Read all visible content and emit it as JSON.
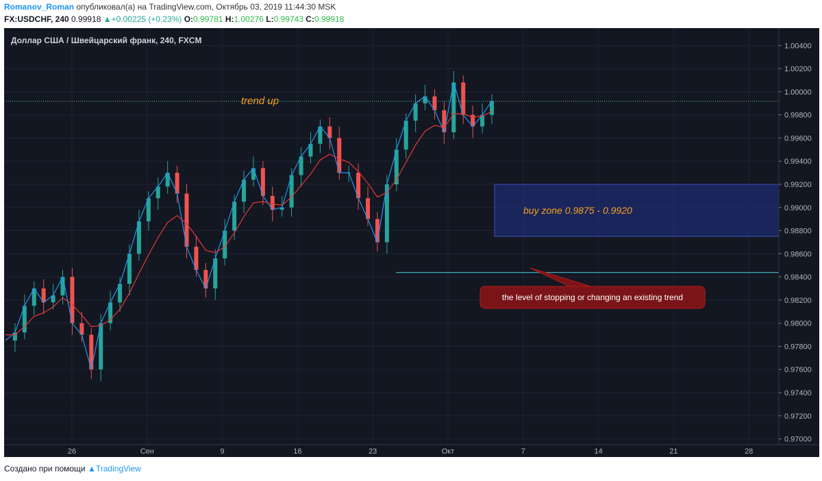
{
  "header": {
    "author": "Romanov_Roman",
    "published_text": "опубликовал(а) на TradingView.com, Октябрь 03, 2019 11:44:30 MSK"
  },
  "ohlc": {
    "symbol": "FX:USDCHF, 240",
    "last": "0.99918",
    "change": "+0.00225 (+0.23%)",
    "o_label": "O:",
    "o": "0.99781",
    "h_label": "H:",
    "h": "1.00276",
    "l_label": "L:",
    "l": "0.99743",
    "c_label": "C:",
    "c": "0.99918"
  },
  "chart_data": {
    "type": "line",
    "title": "Доллар США / Швейцарский франк, 240, FXCM",
    "y_ticks": [
      "1.00400",
      "1.00200",
      "1.00000",
      "0.99800",
      "0.99600",
      "0.99400",
      "0.99200",
      "0.99000",
      "0.98800",
      "0.98600",
      "0.98400",
      "0.98200",
      "0.98000",
      "0.97800",
      "0.97600",
      "0.97400",
      "0.97200",
      "0.97000"
    ],
    "ylim": [
      0.9695,
      1.0055
    ],
    "x_ticks": [
      "26",
      "Сен",
      "9",
      "16",
      "23",
      "Окт",
      "7",
      "14",
      "21",
      "28"
    ],
    "series": [
      {
        "values": [
          0.9785,
          0.9792,
          0.9815,
          0.983,
          0.9818,
          0.9824,
          0.984,
          0.98,
          0.979,
          0.976,
          0.98,
          0.9818,
          0.9834,
          0.986,
          0.9888,
          0.9908,
          0.9918,
          0.993,
          0.9912,
          0.9866,
          0.9846,
          0.983,
          0.9856,
          0.988,
          0.9905,
          0.9924,
          0.9934,
          0.991,
          0.9898,
          0.99,
          0.9928,
          0.9944,
          0.9955,
          0.997,
          0.996,
          0.993,
          0.993,
          0.9908,
          0.989,
          0.987,
          0.992,
          0.995,
          0.9975,
          0.999,
          0.9996,
          0.9984,
          0.9965,
          1.0008,
          0.998,
          0.997,
          0.998,
          0.9992
        ]
      },
      {
        "values": [
          0.979,
          0.979,
          0.9797,
          0.9806,
          0.9809,
          0.9814,
          0.9822,
          0.9816,
          0.9807,
          0.9797,
          0.9798,
          0.9803,
          0.9812,
          0.9826,
          0.9843,
          0.9859,
          0.9874,
          0.9887,
          0.9893,
          0.9886,
          0.9875,
          0.9863,
          0.9861,
          0.9866,
          0.9878,
          0.9892,
          0.9904,
          0.9905,
          0.9903,
          0.9902,
          0.9909,
          0.9919,
          0.9929,
          0.9941,
          0.9946,
          0.9942,
          0.9939,
          0.9931,
          0.9921,
          0.9909,
          0.9913,
          0.9924,
          0.9939,
          0.9954,
          0.9966,
          0.9971,
          0.9969,
          0.9981,
          0.9981,
          0.9978,
          0.9979,
          0.9983
        ]
      }
    ],
    "price_line": "0.99918",
    "level_line": "0.98438",
    "buy_zone": [
      0.9875,
      0.992
    ],
    "annotations": {
      "trend": "trend up",
      "buy_zone": "buy zone 0.9875 - 0.9920",
      "level": "the level of stopping or changing an existing trend"
    }
  },
  "footer": {
    "made_with": "Создано при помощи",
    "brand": "TradingView"
  },
  "colors": {
    "bg": "#131722",
    "up": "#26a69a",
    "down": "#ef5350",
    "ma_fast": "#2196f3",
    "ma_slow": "#e53935",
    "price_line": "#4fc3a1",
    "level_line": "#4dd0e1",
    "annotation_orange": "#f7a21b",
    "callout_bg": "#7a1419"
  }
}
